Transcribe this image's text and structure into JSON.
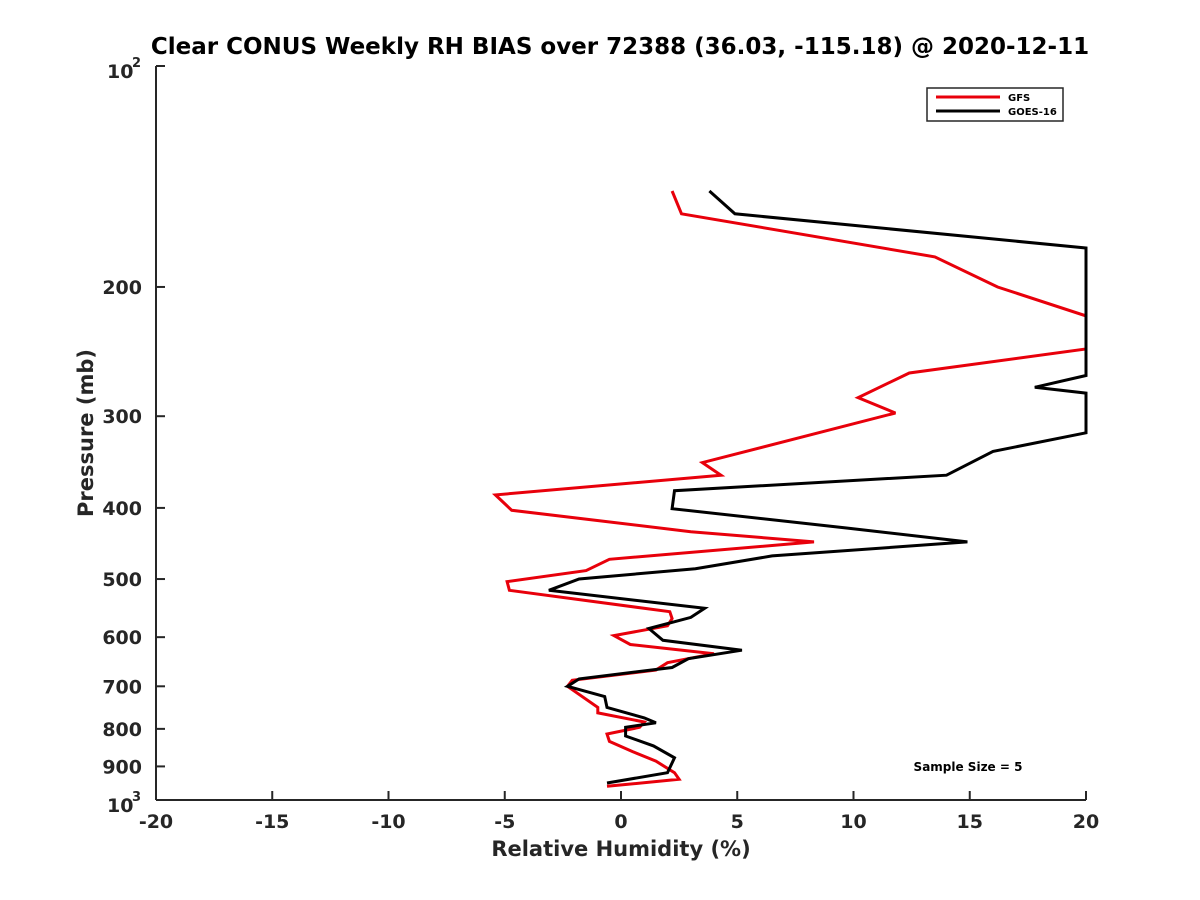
{
  "chart_data": {
    "type": "line",
    "title": "Clear CONUS Weekly RH BIAS over 72388 (36.03, -115.18) @ 2020-12-11",
    "xlabel": "Relative Humidity (%)",
    "ylabel": "Pressure (mb)",
    "xlim": [
      -20,
      20
    ],
    "ylim": [
      1000,
      100
    ],
    "y_scale": "log",
    "y_reversed": true,
    "grid": false,
    "legend_position": "top-right",
    "x_ticks": [
      "-20",
      "-15",
      "-10",
      "-5",
      "0",
      "5",
      "10",
      "15",
      "20"
    ],
    "y_ticks": [
      {
        "value": 100,
        "label": "10",
        "sup": "2"
      },
      {
        "value": 200,
        "label": "200"
      },
      {
        "value": 300,
        "label": "300"
      },
      {
        "value": 400,
        "label": "400"
      },
      {
        "value": 500,
        "label": "500"
      },
      {
        "value": 600,
        "label": "600"
      },
      {
        "value": 700,
        "label": "700"
      },
      {
        "value": 800,
        "label": "800"
      },
      {
        "value": 900,
        "label": "900"
      },
      {
        "value": 1000,
        "label": "10",
        "sup": "3"
      }
    ],
    "annotation": "Sample Size = 5",
    "series": [
      {
        "name": "GFS",
        "color": "#e8000b",
        "points": [
          [
            2.2,
            148
          ],
          [
            2.6,
            159
          ],
          [
            13.5,
            182
          ],
          [
            16.2,
            200
          ],
          [
            20.0,
            219
          ],
          [
            20.0,
            243
          ],
          [
            12.4,
            262
          ],
          [
            10.2,
            283
          ],
          [
            11.8,
            297
          ],
          [
            3.5,
            347
          ],
          [
            4.3,
            361
          ],
          [
            -5.4,
            384
          ],
          [
            -4.7,
            403
          ],
          [
            3.0,
            431
          ],
          [
            8.3,
            445
          ],
          [
            -0.5,
            470
          ],
          [
            -1.5,
            487
          ],
          [
            -4.9,
            504
          ],
          [
            -4.8,
            518
          ],
          [
            2.1,
            554
          ],
          [
            2.2,
            566
          ],
          [
            2.0,
            579
          ],
          [
            -0.3,
            597
          ],
          [
            0.4,
            614
          ],
          [
            4.0,
            632
          ],
          [
            2.0,
            650
          ],
          [
            1.5,
            665
          ],
          [
            -2.1,
            687
          ],
          [
            -2.3,
            700
          ],
          [
            -1.0,
            748
          ],
          [
            -1.0,
            761
          ],
          [
            1.0,
            783
          ],
          [
            0.8,
            796
          ],
          [
            -0.6,
            813
          ],
          [
            -0.5,
            832
          ],
          [
            0.5,
            859
          ],
          [
            1.5,
            885
          ],
          [
            2.3,
            918
          ],
          [
            2.5,
            937
          ],
          [
            -0.6,
            958
          ]
        ]
      },
      {
        "name": "GOES-16",
        "color": "#000000",
        "points": [
          [
            3.8,
            148
          ],
          [
            4.9,
            159
          ],
          [
            20.0,
            177
          ],
          [
            20.0,
            264
          ],
          [
            17.8,
            274
          ],
          [
            20.0,
            279
          ],
          [
            20.0,
            316
          ],
          [
            16.0,
            335
          ],
          [
            14.0,
            361
          ],
          [
            2.3,
            379
          ],
          [
            2.2,
            401
          ],
          [
            9.7,
            426
          ],
          [
            14.9,
            445
          ],
          [
            6.5,
            465
          ],
          [
            3.2,
            484
          ],
          [
            -1.8,
            500
          ],
          [
            -3.1,
            518
          ],
          [
            3.6,
            548
          ],
          [
            3.0,
            564
          ],
          [
            1.2,
            584
          ],
          [
            1.8,
            606
          ],
          [
            5.2,
            625
          ],
          [
            2.9,
            642
          ],
          [
            2.2,
            660
          ],
          [
            -1.8,
            684
          ],
          [
            -2.3,
            700
          ],
          [
            -0.7,
            723
          ],
          [
            -0.6,
            748
          ],
          [
            1.0,
            773
          ],
          [
            1.5,
            785
          ],
          [
            0.2,
            796
          ],
          [
            0.2,
            818
          ],
          [
            1.4,
            844
          ],
          [
            2.3,
            876
          ],
          [
            2.0,
            918
          ],
          [
            -0.6,
            948
          ]
        ]
      }
    ]
  }
}
